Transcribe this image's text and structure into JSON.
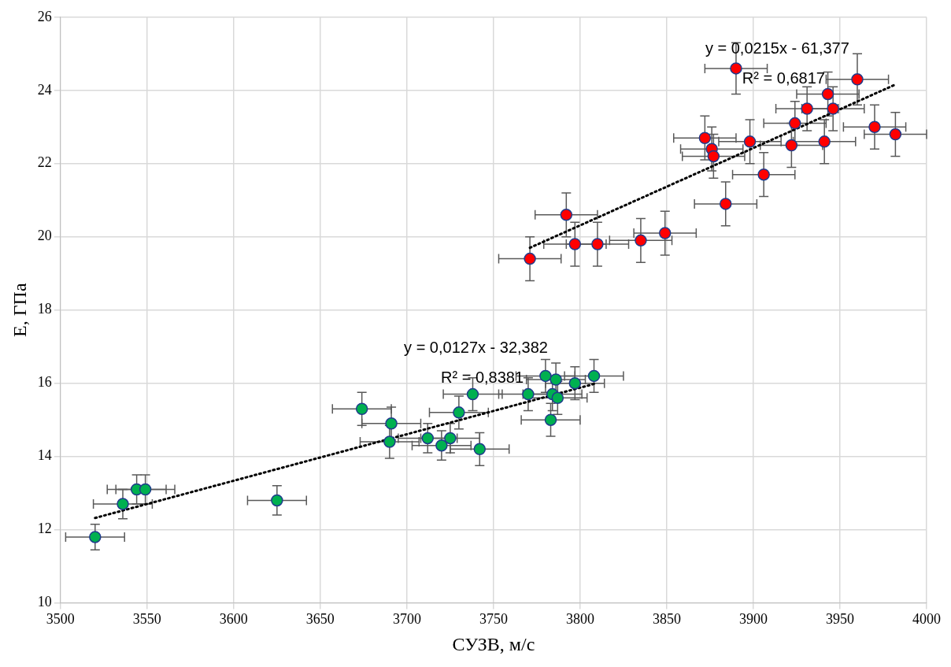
{
  "chart_data": {
    "type": "scatter",
    "xlabel": "СУЗВ, м/с",
    "ylabel": "E, ГПа",
    "xlim": [
      3500,
      4000
    ],
    "xticks": [
      3500,
      3550,
      3600,
      3650,
      3700,
      3750,
      3800,
      3850,
      3900,
      3950,
      4000
    ],
    "ylim": [
      10,
      26
    ],
    "yticks": [
      10,
      12,
      14,
      16,
      18,
      20,
      22,
      24,
      26
    ],
    "grid": true,
    "legend": false,
    "marker": "circle",
    "series": [
      {
        "type": "scatter",
        "color": "#ff0000",
        "x": [
          3890,
          3960,
          3943,
          3931,
          3946,
          3924,
          3872,
          3876,
          3877,
          3898,
          3922,
          3941,
          3970,
          3982,
          3906,
          3884,
          3792,
          3797,
          3810,
          3835,
          3849,
          3771
        ],
        "values": [
          24.6,
          24.3,
          23.9,
          23.5,
          23.5,
          23.1,
          22.7,
          22.4,
          22.2,
          22.6,
          22.5,
          22.6,
          23.0,
          22.8,
          21.7,
          20.9,
          20.6,
          19.8,
          19.8,
          19.9,
          20.1,
          19.4
        ],
        "errors": [
          0.7,
          0.7,
          0.6,
          0.6,
          0.6,
          0.6,
          0.6,
          0.6,
          0.6,
          0.6,
          0.6,
          0.6,
          0.6,
          0.6,
          0.6,
          0.6,
          0.6,
          0.6,
          0.6,
          0.6,
          0.6,
          0.6
        ],
        "xerrors": [
          18,
          18,
          18,
          18,
          18,
          18,
          18,
          18,
          18,
          18,
          18,
          18,
          18,
          18,
          18,
          18,
          18,
          18,
          18,
          18,
          18,
          18
        ]
      },
      {
        "type": "scatter",
        "color": "#00b050",
        "x": [
          3520,
          3536,
          3544,
          3549,
          3625,
          3674,
          3690,
          3691,
          3712,
          3720,
          3725,
          3742,
          3730,
          3738,
          3770,
          3780,
          3786,
          3784,
          3787,
          3797,
          3808,
          3783
        ],
        "values": [
          11.8,
          12.7,
          13.1,
          13.1,
          12.8,
          15.3,
          14.4,
          14.9,
          14.5,
          14.3,
          14.5,
          14.2,
          15.2,
          15.7,
          15.7,
          16.2,
          16.1,
          15.7,
          15.6,
          16.0,
          16.2,
          15.0
        ],
        "errors": [
          0.35,
          0.4,
          0.4,
          0.4,
          0.4,
          0.45,
          0.45,
          0.45,
          0.4,
          0.4,
          0.4,
          0.45,
          0.45,
          0.45,
          0.45,
          0.45,
          0.45,
          0.45,
          0.45,
          0.45,
          0.45,
          0.45
        ],
        "xerrors": [
          17,
          17,
          17,
          17,
          17,
          17,
          17,
          17,
          17,
          17,
          17,
          17,
          17,
          17,
          17,
          17,
          17,
          17,
          17,
          17,
          17,
          17
        ]
      },
      {
        "type": "line",
        "color": "#000000",
        "line_style": "dotted",
        "marker": "none",
        "x": [
          3771,
          3982
        ],
        "values": [
          19.7,
          24.16
        ]
      },
      {
        "type": "line",
        "color": "#000000",
        "line_style": "dotted",
        "marker": "none",
        "x": [
          3520,
          3808
        ],
        "values": [
          12.32,
          15.98
        ]
      }
    ],
    "annotations": [
      "y = 0,0215x - 61,377",
      "R² = 0,6817",
      "y = 0,0127x - 32,382",
      "R² = 0,8381"
    ]
  }
}
